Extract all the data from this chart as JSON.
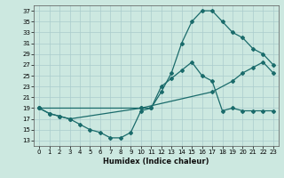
{
  "title": "",
  "xlabel": "Humidex (Indice chaleur)",
  "bg_color": "#cce8e0",
  "grid_color": "#aacccc",
  "line_color": "#1a6b6b",
  "xlim": [
    -0.5,
    23.5
  ],
  "ylim": [
    12,
    38
  ],
  "xticks": [
    0,
    1,
    2,
    3,
    4,
    5,
    6,
    7,
    8,
    9,
    10,
    11,
    12,
    13,
    14,
    15,
    16,
    17,
    18,
    19,
    20,
    21,
    22,
    23
  ],
  "yticks": [
    13,
    15,
    17,
    19,
    21,
    23,
    25,
    27,
    29,
    31,
    33,
    35,
    37
  ],
  "line1_x": [
    0,
    1,
    2,
    3,
    4,
    5,
    6,
    7,
    8,
    9,
    10,
    11,
    12,
    13,
    14,
    15,
    16,
    17,
    18,
    19,
    20,
    21,
    22,
    23
  ],
  "line1_y": [
    19,
    18,
    17.5,
    17,
    16,
    15,
    14.5,
    13.5,
    13.5,
    14.5,
    18.5,
    19,
    23,
    24.5,
    26,
    27.5,
    25,
    24,
    18.5,
    19,
    18.5,
    18.5,
    18.5,
    18.5
  ],
  "line2_x": [
    0,
    1,
    2,
    3,
    10,
    11,
    12,
    13,
    14,
    15,
    16,
    17,
    18,
    19,
    20,
    21,
    22,
    23
  ],
  "line2_y": [
    19,
    18,
    17.5,
    17,
    19,
    19,
    22,
    25.5,
    31,
    35,
    37,
    37,
    35,
    33,
    32,
    30,
    29,
    27
  ],
  "line3_x": [
    0,
    10,
    17,
    19,
    20,
    21,
    22,
    23
  ],
  "line3_y": [
    19,
    19,
    22,
    24,
    25.5,
    26.5,
    27.5,
    25.5
  ]
}
